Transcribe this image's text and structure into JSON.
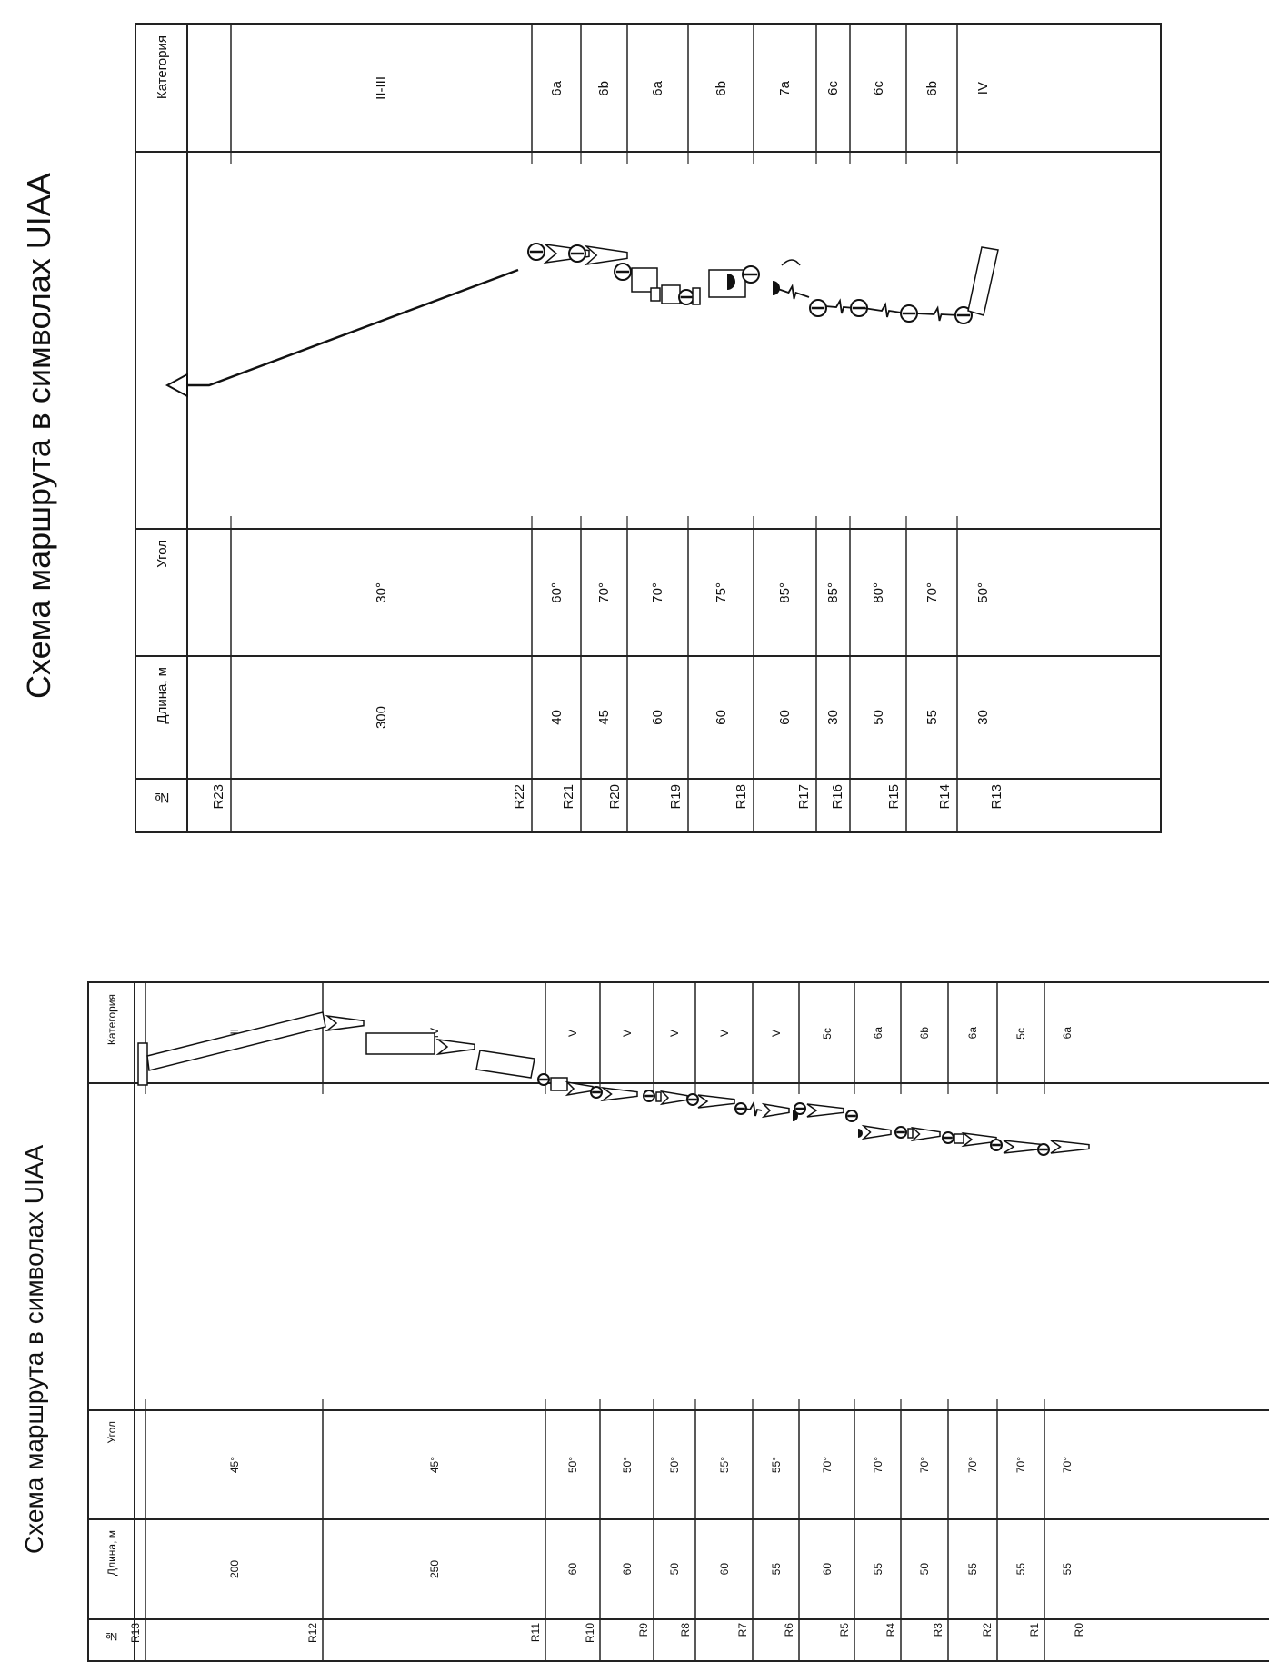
{
  "scheme2": {
    "title": "Схема  маршрута в символах UIAA",
    "headers": [
      "№",
      "Длина, м",
      "Угол",
      "Категория"
    ],
    "rows": [
      {
        "id": "R23",
        "length": "",
        "angle": "",
        "category": ""
      },
      {
        "id": "R22",
        "length": "300",
        "angle": "30°",
        "category": "II-III"
      },
      {
        "id": "R21",
        "length": "40",
        "angle": "60°",
        "category": "6a"
      },
      {
        "id": "R20",
        "length": "45",
        "angle": "70°",
        "category": "6b"
      },
      {
        "id": "R19",
        "length": "60",
        "angle": "70°",
        "category": "6a"
      },
      {
        "id": "R18",
        "length": "60",
        "angle": "75°",
        "category": "6b"
      },
      {
        "id": "R17",
        "length": "60",
        "angle": "85°",
        "category": "7a"
      },
      {
        "id": "R16",
        "length": "30",
        "angle": "85°",
        "category": "6c"
      },
      {
        "id": "R15",
        "length": "50",
        "angle": "80°",
        "category": "6c"
      },
      {
        "id": "R14",
        "length": "55",
        "angle": "70°",
        "category": "6b"
      },
      {
        "id": "R13",
        "length": "30",
        "angle": "50°",
        "category": "IV"
      }
    ]
  },
  "scheme1": {
    "title": "Схема  маршрута в символах UIAA",
    "headers": [
      "№",
      "Длина, м",
      "Угол",
      "Категория"
    ],
    "rows": [
      {
        "id": "R13",
        "length": "",
        "angle": "",
        "category": ""
      },
      {
        "id": "R12",
        "length": "200",
        "angle": "45°",
        "category": "III"
      },
      {
        "id": "R11",
        "length": "250",
        "angle": "45°",
        "category": "IV"
      },
      {
        "id": "R10",
        "length": "60",
        "angle": "50°",
        "category": "V"
      },
      {
        "id": "R9",
        "length": "60",
        "angle": "50°",
        "category": "V"
      },
      {
        "id": "R8",
        "length": "50",
        "angle": "50°",
        "category": "V"
      },
      {
        "id": "R7",
        "length": "60",
        "angle": "55°",
        "category": "V"
      },
      {
        "id": "R6",
        "length": "55",
        "angle": "55°",
        "category": "V"
      },
      {
        "id": "R5",
        "length": "60",
        "angle": "70°",
        "category": "5c"
      },
      {
        "id": "R4",
        "length": "55",
        "angle": "70°",
        "category": "6a"
      },
      {
        "id": "R3",
        "length": "50",
        "angle": "70°",
        "category": "6b"
      },
      {
        "id": "R2",
        "length": "55",
        "angle": "70°",
        "category": "6a"
      },
      {
        "id": "R1",
        "length": "55",
        "angle": "70°",
        "category": "5c"
      },
      {
        "id": "R0",
        "length": "55",
        "angle": "70°",
        "category": "6a"
      }
    ]
  }
}
